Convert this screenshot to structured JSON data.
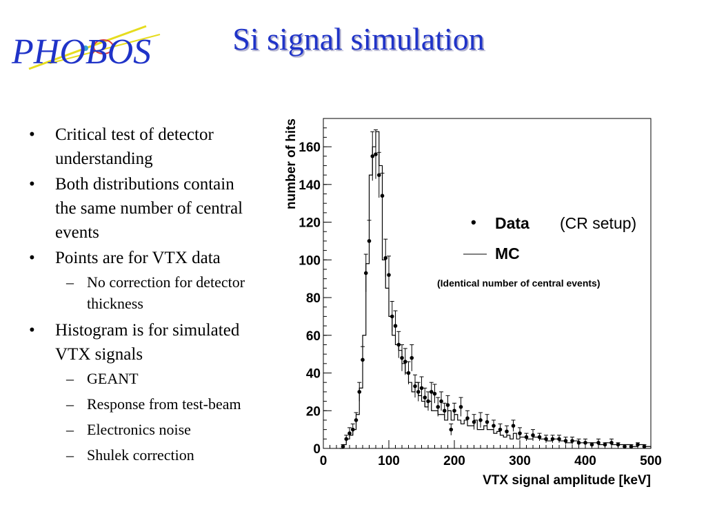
{
  "logo": {
    "text": "PHOBOS"
  },
  "title": "Si signal simulation",
  "bullets": [
    {
      "level": 1,
      "text_lines": [
        "Critical test of detector",
        "understanding"
      ]
    },
    {
      "level": 1,
      "text_lines": [
        "Both distributions contain",
        "the same number of central",
        "events"
      ]
    },
    {
      "level": 1,
      "text_lines": [
        "Points are for VTX data"
      ]
    },
    {
      "level": 2,
      "text_lines": [
        "No correction for detector",
        "thickness"
      ]
    },
    {
      "level": 1,
      "text_lines": [
        "Histogram is for simulated",
        "VTX signals"
      ]
    },
    {
      "level": 2,
      "text_lines": [
        "GEANT"
      ]
    },
    {
      "level": 2,
      "text_lines": [
        "Response from test-beam"
      ]
    },
    {
      "level": 2,
      "text_lines": [
        "Electronics noise"
      ]
    },
    {
      "level": 2,
      "text_lines": [
        "Shulek correction"
      ]
    }
  ],
  "bullet_glyphs": {
    "level1": "•",
    "level2": "–"
  },
  "colors": {
    "title": "#1f33c8",
    "title_shadow": "#a7a7c9",
    "logo_blue": "#1f33c8",
    "logo_yellow": "#e6dc1e"
  },
  "chart_data": {
    "type": "histogram_with_points",
    "xlabel": "VTX signal amplitude [keV]",
    "ylabel": "number of hits",
    "xlim": [
      0,
      500
    ],
    "ylim": [
      0,
      175
    ],
    "xticks": [
      0,
      100,
      200,
      300,
      400,
      500
    ],
    "yticks": [
      0,
      20,
      40,
      60,
      80,
      100,
      120,
      140,
      160
    ],
    "legend": {
      "placement": "center-right",
      "entries": [
        {
          "symbol": "•",
          "label": "Data"
        },
        {
          "symbol": "line",
          "label": "MC"
        }
      ],
      "note": "(CR setup)",
      "subnote": "(Identical number of central events)"
    },
    "series": [
      {
        "name": "Data",
        "kind": "points",
        "x": [
          30,
          35,
          40,
          45,
          50,
          55,
          60,
          65,
          70,
          75,
          80,
          85,
          90,
          95,
          100,
          105,
          110,
          115,
          120,
          125,
          130,
          135,
          140,
          145,
          150,
          155,
          160,
          165,
          170,
          175,
          180,
          185,
          190,
          195,
          200,
          210,
          220,
          230,
          240,
          250,
          260,
          270,
          280,
          290,
          300,
          310,
          320,
          330,
          340,
          350,
          360,
          370,
          380,
          390,
          400,
          410,
          420,
          430,
          440,
          450,
          460,
          470,
          480,
          490
        ],
        "y": [
          1,
          5,
          8,
          10,
          15,
          30,
          47,
          93,
          110,
          155,
          156,
          145,
          134,
          101,
          92,
          70,
          65,
          55,
          48,
          46,
          40,
          48,
          33,
          30,
          32,
          27,
          25,
          30,
          29,
          22,
          25,
          20,
          23,
          10,
          20,
          22,
          16,
          14,
          15,
          14,
          12,
          10,
          9,
          12,
          8,
          6,
          7,
          6,
          5,
          5,
          5,
          4,
          4,
          3,
          3,
          2,
          3,
          2,
          3,
          2,
          1,
          1,
          2,
          1
        ],
        "err": [
          1,
          2,
          3,
          3,
          4,
          5,
          7,
          10,
          11,
          13,
          13,
          12,
          12,
          10,
          10,
          8,
          8,
          7,
          7,
          7,
          6,
          7,
          6,
          5,
          6,
          5,
          5,
          5,
          5,
          5,
          5,
          4,
          5,
          3,
          4,
          5,
          4,
          4,
          4,
          4,
          3,
          3,
          3,
          3,
          3,
          2,
          3,
          2,
          2,
          2,
          2,
          2,
          2,
          2,
          2,
          1,
          2,
          1,
          2,
          1,
          1,
          1,
          1,
          1
        ]
      },
      {
        "name": "MC",
        "kind": "histogram",
        "bin_edges": [
          25,
          30,
          35,
          40,
          45,
          50,
          55,
          60,
          65,
          70,
          75,
          80,
          85,
          90,
          95,
          100,
          105,
          110,
          115,
          120,
          125,
          130,
          135,
          140,
          145,
          150,
          155,
          160,
          165,
          170,
          175,
          180,
          185,
          190,
          195,
          200,
          205,
          210,
          215,
          220,
          225,
          230,
          235,
          240,
          245,
          250,
          255,
          260,
          265,
          270,
          275,
          280,
          285,
          290,
          295,
          300,
          310,
          320,
          330,
          340,
          350,
          360,
          370,
          380,
          390,
          400,
          410,
          420,
          430,
          440,
          450,
          460,
          470,
          480,
          490,
          500
        ],
        "counts": [
          0,
          2,
          5,
          7,
          10,
          18,
          32,
          60,
          98,
          145,
          160,
          168,
          150,
          100,
          85,
          70,
          60,
          55,
          52,
          45,
          40,
          35,
          30,
          35,
          28,
          25,
          22,
          25,
          20,
          20,
          18,
          18,
          15,
          20,
          15,
          18,
          15,
          13,
          15,
          12,
          12,
          15,
          10,
          10,
          12,
          10,
          10,
          8,
          9,
          7,
          6,
          7,
          5,
          8,
          5,
          6,
          5,
          6,
          5,
          4,
          5,
          4,
          3,
          4,
          3,
          3,
          3,
          2,
          3,
          2,
          2,
          2,
          1,
          2,
          1
        ]
      }
    ]
  }
}
